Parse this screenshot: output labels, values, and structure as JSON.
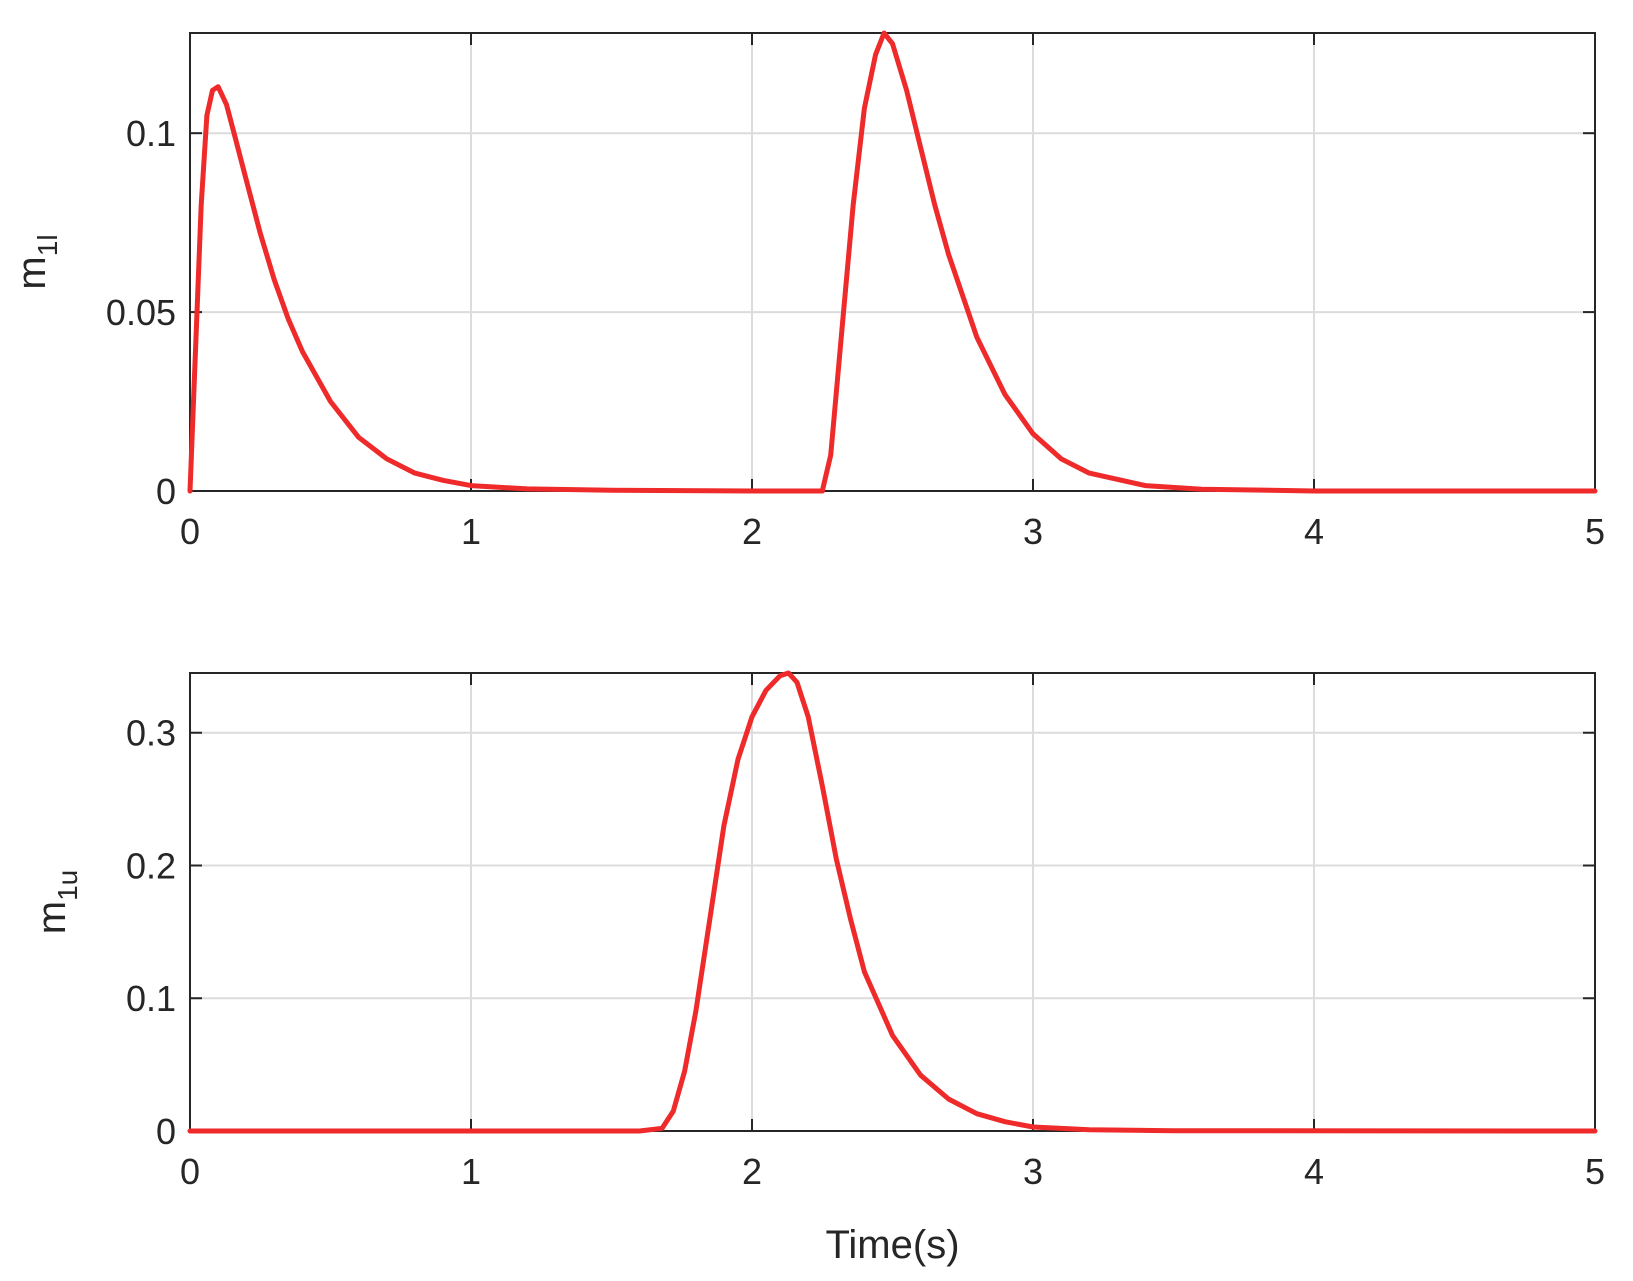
{
  "chart_data": [
    {
      "type": "line",
      "ylabel_main": "m",
      "ylabel_sub": "1l",
      "xlabel": "",
      "xlim": [
        0,
        5
      ],
      "ylim": [
        0,
        0.128
      ],
      "x_ticks": [
        "0",
        "1",
        "2",
        "3",
        "4",
        "5"
      ],
      "y_ticks": [
        {
          "value": 0,
          "label": "0"
        },
        {
          "value": 0.05,
          "label": "0.05"
        },
        {
          "value": 0.1,
          "label": "0.1"
        }
      ],
      "grid": true,
      "series": [
        {
          "color": "#ee2a2a",
          "x": [
            0,
            0.02,
            0.04,
            0.06,
            0.08,
            0.1,
            0.13,
            0.16,
            0.2,
            0.25,
            0.3,
            0.35,
            0.4,
            0.5,
            0.6,
            0.7,
            0.8,
            0.9,
            1.0,
            1.2,
            1.5,
            2.0,
            2.2,
            2.25,
            2.28,
            2.32,
            2.36,
            2.4,
            2.44,
            2.47,
            2.5,
            2.55,
            2.6,
            2.65,
            2.7,
            2.8,
            2.9,
            3.0,
            3.1,
            3.2,
            3.4,
            3.6,
            4.0,
            5.0
          ],
          "y": [
            0,
            0.04,
            0.08,
            0.105,
            0.112,
            0.113,
            0.108,
            0.099,
            0.087,
            0.072,
            0.059,
            0.048,
            0.039,
            0.025,
            0.015,
            0.009,
            0.005,
            0.003,
            0.0015,
            0.0006,
            0.0002,
            0,
            0,
            0,
            0.01,
            0.045,
            0.08,
            0.107,
            0.122,
            0.128,
            0.125,
            0.112,
            0.096,
            0.08,
            0.066,
            0.043,
            0.027,
            0.016,
            0.009,
            0.005,
            0.0015,
            0.0005,
            0,
            0
          ]
        }
      ]
    },
    {
      "type": "line",
      "ylabel_main": "m",
      "ylabel_sub": "1u",
      "xlabel": "Time(s)",
      "xlim": [
        0,
        5
      ],
      "ylim": [
        0,
        0.345
      ],
      "x_ticks": [
        "0",
        "1",
        "2",
        "3",
        "4",
        "5"
      ],
      "y_ticks": [
        {
          "value": 0,
          "label": "0"
        },
        {
          "value": 0.1,
          "label": "0.1"
        },
        {
          "value": 0.2,
          "label": "0.2"
        },
        {
          "value": 0.3,
          "label": "0.3"
        }
      ],
      "grid": true,
      "series": [
        {
          "color": "#ee2a2a",
          "x": [
            0,
            1.0,
            1.6,
            1.68,
            1.72,
            1.76,
            1.8,
            1.85,
            1.9,
            1.95,
            2.0,
            2.05,
            2.1,
            2.13,
            2.16,
            2.2,
            2.25,
            2.3,
            2.35,
            2.4,
            2.5,
            2.6,
            2.7,
            2.8,
            2.9,
            3.0,
            3.2,
            3.5,
            5.0
          ],
          "y": [
            0,
            0,
            0,
            0.002,
            0.015,
            0.045,
            0.09,
            0.16,
            0.23,
            0.28,
            0.312,
            0.332,
            0.343,
            0.345,
            0.338,
            0.312,
            0.26,
            0.205,
            0.16,
            0.12,
            0.072,
            0.042,
            0.024,
            0.013,
            0.007,
            0.003,
            0.001,
            0.0002,
            0
          ]
        }
      ]
    }
  ]
}
